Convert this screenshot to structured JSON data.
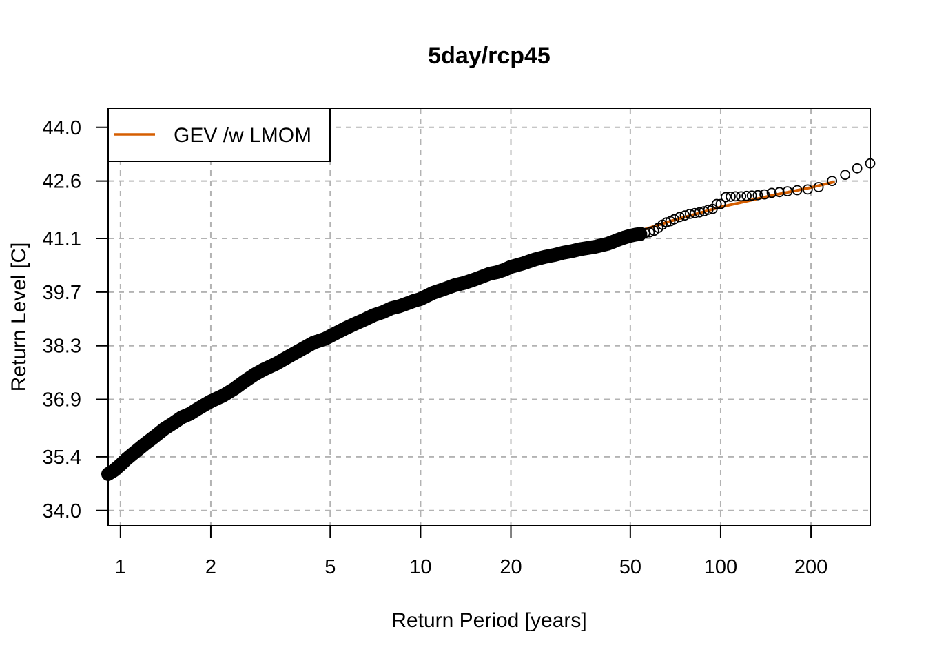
{
  "chart_data": {
    "type": "scatter",
    "title": "5day/rcp45",
    "xlabel": "Return Period [years]",
    "ylabel": "Return Level [C]",
    "x_scale": "log",
    "xlim": [
      0.91,
      315
    ],
    "ylim": [
      33.6,
      44.5
    ],
    "x_ticks": [
      {
        "value": 1,
        "label": "1"
      },
      {
        "value": 2,
        "label": "2"
      },
      {
        "value": 5,
        "label": "5"
      },
      {
        "value": 10,
        "label": "10"
      },
      {
        "value": 20,
        "label": "20"
      },
      {
        "value": 50,
        "label": "50"
      },
      {
        "value": 100,
        "label": "100"
      },
      {
        "value": 200,
        "label": "200"
      }
    ],
    "y_ticks": [
      {
        "value": 34.0,
        "label": "34.0"
      },
      {
        "value": 35.4,
        "label": "35.4"
      },
      {
        "value": 36.9,
        "label": "36.9"
      },
      {
        "value": 38.3,
        "label": "38.3"
      },
      {
        "value": 39.7,
        "label": "39.7"
      },
      {
        "value": 41.1,
        "label": "41.1"
      },
      {
        "value": 42.6,
        "label": "42.6"
      },
      {
        "value": 44.0,
        "label": "44.0"
      }
    ],
    "grid": true,
    "legend": {
      "position": "top-left",
      "entries": [
        {
          "label": "GEV /w LMOM",
          "color": "#d55e00"
        }
      ]
    },
    "series": [
      {
        "name": "GEV /w LMOM",
        "kind": "line",
        "color": "#d55e00",
        "x": [
          0.91,
          1,
          1.5,
          2,
          3,
          5,
          7,
          10,
          15,
          20,
          30,
          40,
          50,
          70,
          100,
          150,
          200,
          240
        ],
        "y": [
          34.95,
          35.23,
          36.18,
          36.78,
          37.6,
          38.5,
          39.0,
          39.45,
          39.95,
          40.25,
          40.68,
          40.98,
          41.22,
          41.58,
          41.92,
          42.23,
          42.43,
          42.58
        ]
      },
      {
        "kind": "points",
        "color": "#000000",
        "x": [
          0.91,
          0.95,
          1.0,
          1.05,
          1.1,
          1.2,
          1.3,
          1.4,
          1.5,
          1.6,
          1.7,
          1.8,
          1.9,
          2.0,
          2.2,
          2.4,
          2.6,
          2.8,
          3.0,
          3.3,
          3.6,
          4.0,
          4.4,
          4.8,
          5.2,
          5.6,
          6.0,
          6.5,
          7.0,
          7.5,
          8.0,
          8.5,
          9.0,
          9.5,
          10,
          11,
          12,
          13,
          14,
          15,
          16,
          17,
          18,
          19,
          20,
          22,
          24,
          26,
          28,
          30,
          32,
          34,
          36,
          38,
          40,
          42,
          44,
          46,
          48,
          50,
          52,
          54,
          56,
          58,
          60,
          62,
          64,
          66,
          68,
          70,
          73,
          76,
          79,
          82,
          85,
          88,
          91,
          94,
          97,
          100,
          104,
          108,
          112,
          117,
          122,
          127,
          133,
          140,
          148,
          157,
          167,
          180,
          195,
          212,
          235,
          260,
          285,
          315
        ],
        "y": [
          34.95,
          35.04,
          35.19,
          35.35,
          35.48,
          35.72,
          35.93,
          36.13,
          36.28,
          36.43,
          36.52,
          36.64,
          36.75,
          36.85,
          37.0,
          37.18,
          37.38,
          37.55,
          37.68,
          37.83,
          38.0,
          38.2,
          38.38,
          38.48,
          38.62,
          38.75,
          38.86,
          38.98,
          39.1,
          39.18,
          39.28,
          39.33,
          39.4,
          39.47,
          39.52,
          39.68,
          39.78,
          39.88,
          39.94,
          40.02,
          40.1,
          40.18,
          40.22,
          40.28,
          40.36,
          40.45,
          40.55,
          40.62,
          40.67,
          40.73,
          40.77,
          40.82,
          40.85,
          40.88,
          40.92,
          40.96,
          41.02,
          41.08,
          41.13,
          41.17,
          41.2,
          41.22,
          41.24,
          41.26,
          41.3,
          41.38,
          41.46,
          41.52,
          41.55,
          41.6,
          41.66,
          41.7,
          41.74,
          41.76,
          41.78,
          41.81,
          41.85,
          41.87,
          42.0,
          42.0,
          42.18,
          42.19,
          42.2,
          42.2,
          42.21,
          42.22,
          42.23,
          42.25,
          42.29,
          42.31,
          42.33,
          42.36,
          42.38,
          42.44,
          42.6,
          42.76,
          42.93,
          43.06
        ]
      }
    ]
  }
}
